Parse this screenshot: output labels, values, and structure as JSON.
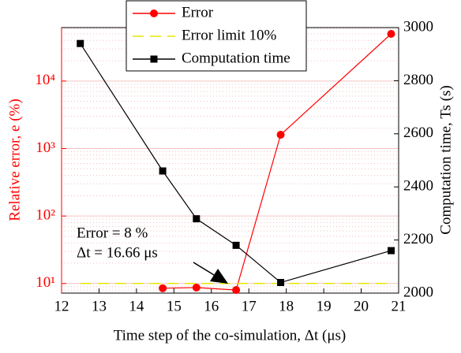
{
  "chart_data": {
    "type": "line",
    "x_label": "Time step of the co-simulation, Δt  (μs)",
    "y_label": "Relative error, e (%)",
    "y2_label": "Computation time, Ts (s)",
    "x": [
      12.5,
      14.7,
      15.6,
      16.66,
      17.85,
      20.8
    ],
    "series": [
      {
        "name": "Error",
        "color": "#ff0000",
        "marker": "circle",
        "values": [
          null,
          8.5,
          8.7,
          8,
          1600,
          50000
        ]
      },
      {
        "name": "Error limit 10%",
        "color": "#e6e600",
        "dashed": true,
        "values": [
          10,
          10,
          10,
          10,
          10,
          10
        ]
      },
      {
        "name": "Computation time",
        "color": "#000000",
        "marker": "square",
        "axis": "y2",
        "values": [
          2940,
          2460,
          2280,
          2180,
          2040,
          2160
        ]
      }
    ],
    "xlim": [
      12,
      21
    ],
    "xticks": [
      12,
      13,
      14,
      15,
      16,
      17,
      18,
      19,
      20,
      21
    ],
    "log_y": true,
    "ylim": [
      7.2,
      62000
    ],
    "yticks": [
      {
        "value": 10,
        "label": "10¹"
      },
      {
        "value": 100,
        "label": "10²"
      },
      {
        "value": 1000,
        "label": "10³"
      },
      {
        "value": 10000,
        "label": "10⁴"
      }
    ],
    "y2lim": [
      2000,
      3000
    ],
    "y2ticks": [
      2000,
      2200,
      2400,
      2600,
      2800,
      3000
    ],
    "grid": true,
    "annotation": {
      "lines": [
        "Error = 8 %",
        "Δt = 16.66 μs"
      ]
    }
  }
}
